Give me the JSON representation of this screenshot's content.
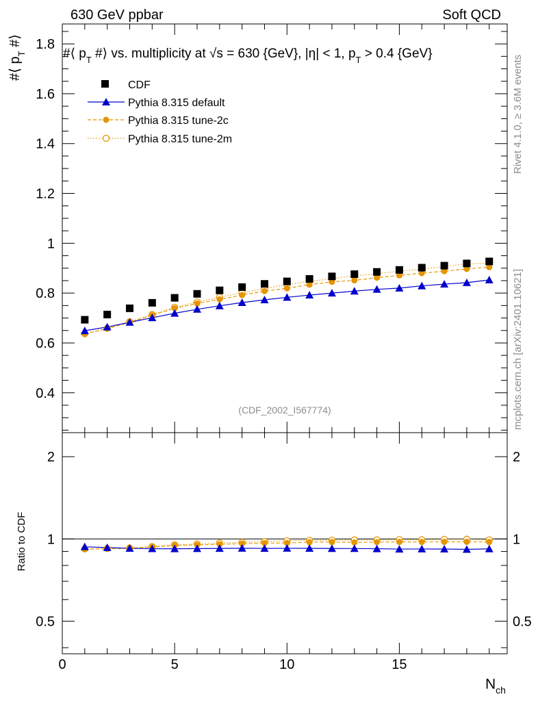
{
  "header": {
    "left": "630 GeV ppbar",
    "right": "Soft QCD"
  },
  "side_labels": {
    "rivet": "Rivet 4.1.0, ≥ 3.6M events",
    "mcplots": "mcplots.cern.ch [arXiv:2401.10621]"
  },
  "chart_data": {
    "type": "scatter",
    "title": "#⟨ p_T #⟩ vs. multiplicity at √s = 630 {GeV}, |η| < 1, p_T > 0.4 {GeV}",
    "title_parts": {
      "p1": "#⟨ p",
      "p2": "T",
      "p3": " #⟩ vs. multiplicity at ",
      "p4": "√",
      "p5": "s = 630 {GeV}, |η| < 1, p",
      "p6": "T",
      "p7": " > 0.4 {GeV}"
    },
    "analysis_tag": "(CDF_2002_I567774)",
    "xlabel": {
      "main": "N",
      "sub": "ch"
    },
    "ylabel": {
      "main": "#⟨ p",
      "sub": "T",
      "end": " #⟩"
    },
    "ratio_ylabel": "Ratio to CDF",
    "xlim": [
      0,
      19.8
    ],
    "ylim": [
      0.24,
      1.88
    ],
    "ratio_ylim": [
      0.38,
      2.45
    ],
    "x_ticks": [
      0,
      5,
      10,
      15
    ],
    "x_tick_labels": [
      "0",
      "5",
      "10",
      "15"
    ],
    "y_ticks": [
      0.4,
      0.6,
      0.8,
      1.0,
      1.2,
      1.4,
      1.6,
      1.8
    ],
    "y_tick_labels": [
      "0.4",
      "0.6",
      "0.8",
      "1",
      "1.2",
      "1.4",
      "1.6",
      "1.8"
    ],
    "ratio_ticks": [
      0.5,
      1,
      2
    ],
    "ratio_tick_labels": [
      "0.5",
      "1",
      "2"
    ],
    "x": [
      1,
      2,
      3,
      4,
      5,
      6,
      7,
      8,
      9,
      10,
      11,
      12,
      13,
      14,
      15,
      16,
      17,
      18,
      19
    ],
    "series": [
      {
        "name": "CDF",
        "color": "#000000",
        "marker": "square",
        "values": [
          0.693,
          0.714,
          0.739,
          0.761,
          0.781,
          0.797,
          0.811,
          0.824,
          0.837,
          0.847,
          0.857,
          0.867,
          0.876,
          0.885,
          0.893,
          0.902,
          0.91,
          0.919,
          0.927
        ]
      },
      {
        "name": "Pythia 8.315 default",
        "color": "#0000cc",
        "marker": "triangle",
        "line": "solid",
        "values": [
          0.649,
          0.664,
          0.683,
          0.701,
          0.719,
          0.735,
          0.749,
          0.762,
          0.773,
          0.783,
          0.792,
          0.8,
          0.808,
          0.815,
          0.82,
          0.829,
          0.836,
          0.842,
          0.853
        ]
      },
      {
        "name": "Pythia 8.315 tune-2c",
        "color": "#e69500",
        "marker": "circle",
        "line": "dashed",
        "values": [
          0.636,
          0.657,
          0.683,
          0.711,
          0.739,
          0.758,
          0.775,
          0.792,
          0.808,
          0.819,
          0.834,
          0.845,
          0.851,
          0.862,
          0.871,
          0.88,
          0.888,
          0.897,
          0.904
        ]
      },
      {
        "name": "Pythia 8.315 tune-2m",
        "color": "#e69500",
        "marker": "open-circle",
        "line": "dotted",
        "values": [
          0.637,
          0.659,
          0.685,
          0.714,
          0.743,
          0.764,
          0.784,
          0.801,
          0.819,
          0.834,
          0.847,
          0.858,
          0.869,
          0.878,
          0.888,
          0.896,
          0.907,
          0.917,
          0.92
        ]
      }
    ],
    "legend_position": "top-left"
  }
}
